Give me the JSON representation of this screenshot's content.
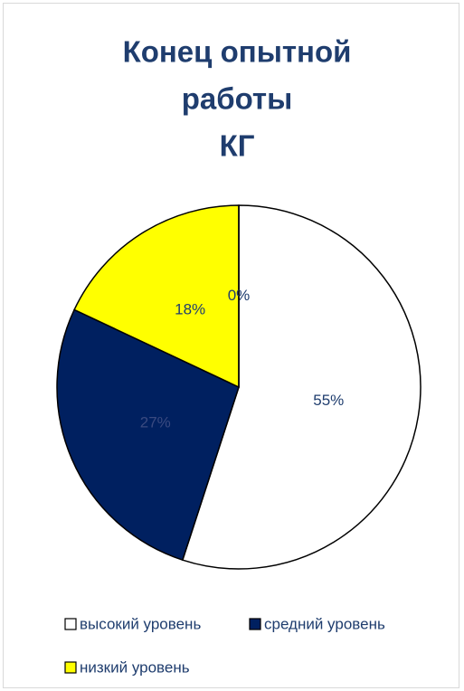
{
  "chart_data": {
    "type": "pie",
    "title": [
      "Конец опытной",
      "работы",
      "КГ"
    ],
    "categories": [
      "высокий уровень",
      "средний уровень",
      "низкий уровень",
      null
    ],
    "values": [
      55,
      27,
      18,
      0
    ],
    "value_labels": [
      "55%",
      "27%",
      "18%",
      "0%"
    ],
    "colors": [
      "#ffffff",
      "#002060",
      "#ffff00",
      "#ffffff"
    ],
    "legend": "bottom"
  }
}
